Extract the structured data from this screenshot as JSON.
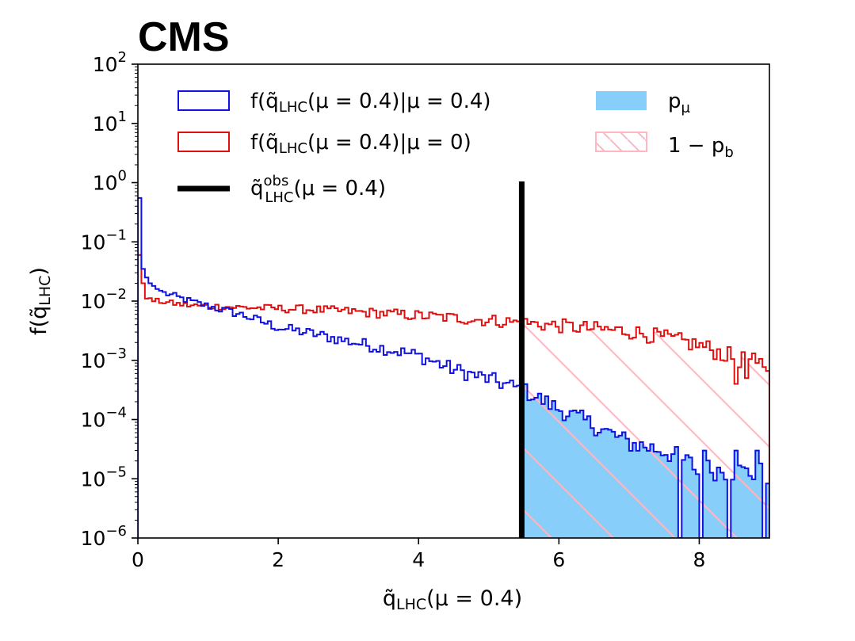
{
  "chart_data": {
    "type": "histogram",
    "experiment": "CMS",
    "xlabel_main": "q̃",
    "xlabel_sub": "LHC",
    "xlabel_rest": "(μ = 0.4)",
    "ylabel_main": "f(q̃",
    "ylabel_sub": "LHC",
    "ylabel_rest": ")",
    "xlim": [
      0,
      9
    ],
    "ylim_log10": [
      -6,
      2
    ],
    "x_ticks": [
      {
        "value": 0,
        "label": "0"
      },
      {
        "value": 2,
        "label": "2"
      },
      {
        "value": 4,
        "label": "4"
      },
      {
        "value": 6,
        "label": "6"
      },
      {
        "value": 8,
        "label": "8"
      }
    ],
    "y_ticks": [
      {
        "exp": 2,
        "base": "10",
        "power": "2"
      },
      {
        "exp": 1,
        "base": "10",
        "power": "1"
      },
      {
        "exp": 0,
        "base": "10",
        "power": "0"
      },
      {
        "exp": -1,
        "base": "10",
        "power": "−1"
      },
      {
        "exp": -2,
        "base": "10",
        "power": "−2"
      },
      {
        "exp": -3,
        "base": "10",
        "power": "−3"
      },
      {
        "exp": -4,
        "base": "10",
        "power": "−4"
      },
      {
        "exp": -5,
        "base": "10",
        "power": "−5"
      },
      {
        "exp": -6,
        "base": "10",
        "power": "−6"
      }
    ],
    "observed": 5.47,
    "obs_line_top_log10": 0.02,
    "bin_width": 0.05,
    "series": [
      {
        "name": "signal",
        "color": "#1010e0",
        "legend_main": "f(q̃",
        "legend_sub": "LHC",
        "legend_rest": "(μ = 0.4)|μ = 0.4)",
        "first_bins": [
          0.55,
          0.035,
          0.025,
          0.02,
          0.018,
          0.016,
          0.015
        ],
        "knots": [
          [
            0.35,
            0.014
          ],
          [
            0.8,
            0.0095
          ],
          [
            1.5,
            0.0058
          ],
          [
            2.0,
            0.0036
          ],
          [
            2.5,
            0.0028
          ],
          [
            3.0,
            0.0021
          ],
          [
            3.5,
            0.0016
          ],
          [
            4.0,
            0.0012
          ],
          [
            4.5,
            0.0007
          ],
          [
            5.0,
            0.00048
          ],
          [
            5.5,
            0.00031
          ],
          [
            6.0,
            0.00015
          ],
          [
            6.5,
            8e-05
          ],
          [
            7.0,
            4e-05
          ],
          [
            7.5,
            3e-05
          ],
          [
            8.0,
            1.5e-05
          ],
          [
            9.0,
            1.2e-05
          ]
        ],
        "noise_amp": 0.05,
        "tail_bins": [
          {
            "x": 7.7,
            "v": 1e-06
          },
          {
            "x": 7.95,
            "v": 1.2e-05
          },
          {
            "x": 8.0,
            "v": 1e-06
          },
          {
            "x": 8.1,
            "v": 3e-05
          },
          {
            "x": 8.4,
            "v": 1e-06
          },
          {
            "x": 8.5,
            "v": 3e-05
          },
          {
            "x": 8.65,
            "v": 1.5e-05
          },
          {
            "x": 8.8,
            "v": 8e-06
          },
          {
            "x": 8.85,
            "v": 3e-05
          },
          {
            "x": 8.95,
            "v": 1e-06
          }
        ]
      },
      {
        "name": "background",
        "color": "#e01010",
        "legend_main": "f(q̃",
        "legend_sub": "LHC",
        "legend_rest": "(μ = 0.4)|μ = 0)",
        "first_bins": [
          0.06,
          0.02,
          0.011
        ],
        "knots": [
          [
            0.15,
            0.0105
          ],
          [
            0.7,
            0.0085
          ],
          [
            1.5,
            0.0078
          ],
          [
            2.5,
            0.0072
          ],
          [
            3.5,
            0.0062
          ],
          [
            4.5,
            0.0052
          ],
          [
            5.5,
            0.0043
          ],
          [
            6.5,
            0.0034
          ],
          [
            7.0,
            0.0031
          ],
          [
            7.5,
            0.0024
          ],
          [
            8.0,
            0.0018
          ],
          [
            8.5,
            0.0011
          ],
          [
            9.0,
            0.0008
          ]
        ],
        "noise_amp": 0.04,
        "tail_bins": [
          {
            "x": 8.5,
            "v": 0.0004
          },
          {
            "x": 8.7,
            "v": 0.0005
          },
          {
            "x": 8.85,
            "v": 0.0009
          }
        ]
      }
    ],
    "observed_legend_main": "q̃",
    "observed_legend_sup": "obs",
    "observed_legend_sub": "LHC",
    "observed_legend_rest": "(μ = 0.4)",
    "p_mu_label_main": "p",
    "p_mu_label_sub": "μ",
    "one_minus_pb_label_main": "1 − p",
    "one_minus_pb_label_sub": "b",
    "colors": {
      "signal": "#1010e0",
      "background": "#e01010",
      "observed": "#000000",
      "p_mu_fill": "#87cefa",
      "hatch": "#ffb6c1"
    }
  }
}
